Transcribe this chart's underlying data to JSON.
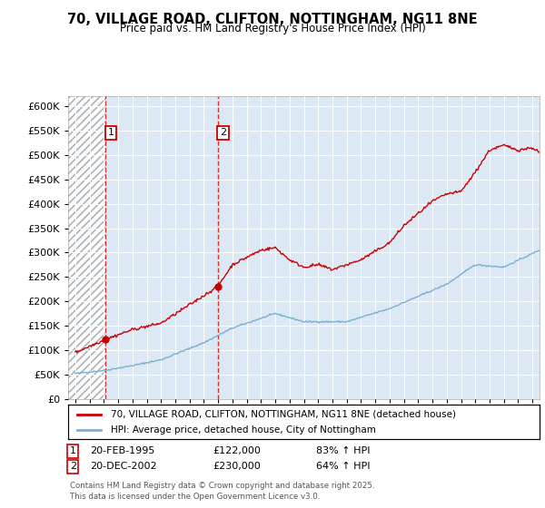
{
  "title": "70, VILLAGE ROAD, CLIFTON, NOTTINGHAM, NG11 8NE",
  "subtitle": "Price paid vs. HM Land Registry's House Price Index (HPI)",
  "sale1_date": 1995.13,
  "sale1_price": 122000,
  "sale1_label": "20-FEB-1995",
  "sale1_amount": "£122,000",
  "sale1_hpi": "83% ↑ HPI",
  "sale2_date": 2002.96,
  "sale2_price": 230000,
  "sale2_label": "20-DEC-2002",
  "sale2_amount": "£230,000",
  "sale2_hpi": "64% ↑ HPI",
  "ylim": [
    0,
    620000
  ],
  "yticks": [
    0,
    50000,
    100000,
    150000,
    200000,
    250000,
    300000,
    350000,
    400000,
    450000,
    500000,
    550000,
    600000
  ],
  "xlim": [
    1992.5,
    2025.5
  ],
  "property_color": "#cc0000",
  "hpi_color": "#7ab0d4",
  "bg_color": "#dce9f5",
  "legend_label1": "70, VILLAGE ROAD, CLIFTON, NOTTINGHAM, NG11 8NE (detached house)",
  "legend_label2": "HPI: Average price, detached house, City of Nottingham",
  "footnote": "Contains HM Land Registry data © Crown copyright and database right 2025.\nThis data is licensed under the Open Government Licence v3.0."
}
